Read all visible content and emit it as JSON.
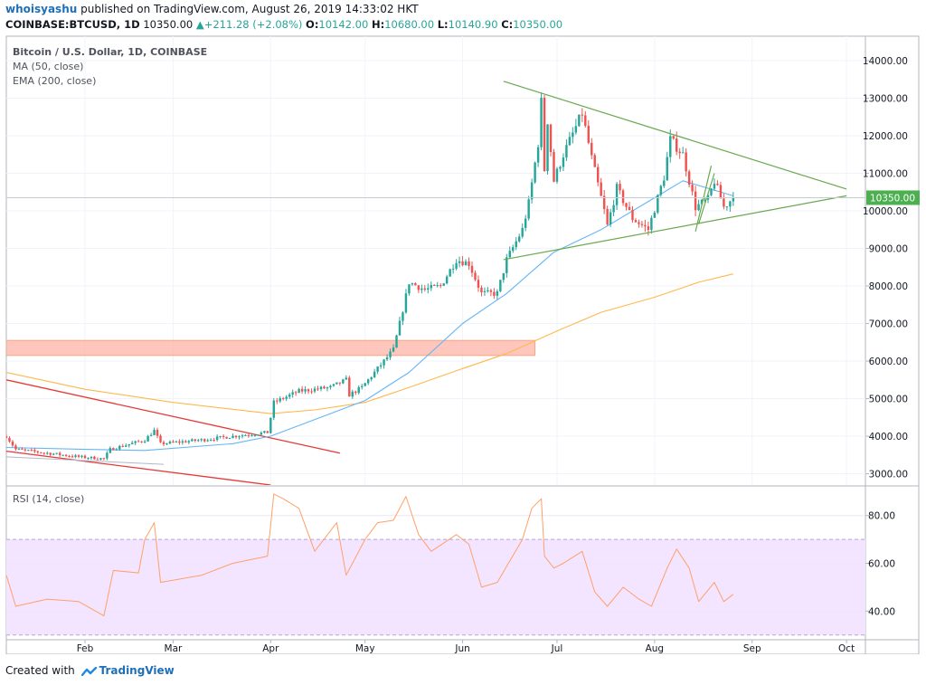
{
  "header": {
    "user": "whoisyashu",
    "published": "published on TradingView.com, August 26, 2019 14:33:02 HKT",
    "symbol": "COINBASE:BTCUSD, 1D",
    "price": "10350.00",
    "change": "+211.28 (+2.08%)",
    "o_label": "O:",
    "o_value": "10142.00",
    "h_label": "H:",
    "h_value": "10680.00",
    "l_label": "L:",
    "l_value": "10140.90",
    "c_label": "C:",
    "c_value": "10350.00"
  },
  "footer": {
    "created_with": "Created with",
    "brand": "TradingView"
  },
  "colors": {
    "up": "#26a69a",
    "down": "#ef5350",
    "ma50": "#64b5f6",
    "ema200": "#ffb74d",
    "triangle": "#6aa84f",
    "channel": "#e53935",
    "zone_fill": "#ffb3a7",
    "rsi": "#ffa069",
    "rsi_band": "#f3e5ff",
    "price_tag": "#4caf50"
  },
  "chart_data": [
    {
      "type": "candlestick",
      "legend": [
        "Bitcoin / U.S. Dollar, 1D, COINBASE",
        "MA (50, close)",
        "EMA (200, close)"
      ],
      "x_tick_labels": [
        "Feb",
        "Mar",
        "Apr",
        "May",
        "Jun",
        "Jul",
        "Aug",
        "Sep",
        "Oct"
      ],
      "y_ticks": [
        3000,
        4000,
        5000,
        6000,
        7000,
        8000,
        9000,
        10000,
        11000,
        12000,
        13000,
        14000
      ],
      "y_tick_labels": [
        "3000.00",
        "4000.00",
        "5000.00",
        "6000.00",
        "7000.00",
        "8000.00",
        "9000.00",
        "10000.00",
        "11000.00",
        "12000.00",
        "13000.00",
        "14000.00"
      ],
      "ylim": [
        2700,
        14650
      ],
      "last_price_label": "10350.00",
      "last_price": 10350,
      "x_date_range": [
        "2019-01-07",
        "2019-10-07"
      ],
      "close_waypoints": [
        [
          "2019-01-07",
          4000
        ],
        [
          "2019-01-10",
          3650
        ],
        [
          "2019-01-20",
          3550
        ],
        [
          "2019-01-30",
          3450
        ],
        [
          "2019-02-07",
          3400
        ],
        [
          "2019-02-09",
          3650
        ],
        [
          "2019-02-20",
          3900
        ],
        [
          "2019-02-23",
          4150
        ],
        [
          "2019-02-25",
          3800
        ],
        [
          "2019-03-10",
          3900
        ],
        [
          "2019-03-20",
          4000
        ],
        [
          "2019-03-31",
          4100
        ],
        [
          "2019-04-02",
          4900
        ],
        [
          "2019-04-10",
          5200
        ],
        [
          "2019-04-20",
          5300
        ],
        [
          "2019-04-25",
          5500
        ],
        [
          "2019-04-26",
          5100
        ],
        [
          "2019-04-30",
          5300
        ],
        [
          "2019-05-05",
          5800
        ],
        [
          "2019-05-10",
          6300
        ],
        [
          "2019-05-12",
          7000
        ],
        [
          "2019-05-15",
          8100
        ],
        [
          "2019-05-20",
          7900
        ],
        [
          "2019-05-25",
          8000
        ],
        [
          "2019-05-30",
          8700
        ],
        [
          "2019-06-03",
          8600
        ],
        [
          "2019-06-07",
          7800
        ],
        [
          "2019-06-12",
          7800
        ],
        [
          "2019-06-15",
          8700
        ],
        [
          "2019-06-20",
          9500
        ],
        [
          "2019-06-22",
          10200
        ],
        [
          "2019-06-25",
          11800
        ],
        [
          "2019-06-26",
          12900
        ],
        [
          "2019-06-27",
          11100
        ],
        [
          "2019-06-28",
          12400
        ],
        [
          "2019-06-30",
          10800
        ],
        [
          "2019-07-03",
          11500
        ],
        [
          "2019-07-09",
          12600
        ],
        [
          "2019-07-12",
          11400
        ],
        [
          "2019-07-16",
          10000
        ],
        [
          "2019-07-17",
          9600
        ],
        [
          "2019-07-20",
          10600
        ],
        [
          "2019-07-25",
          9800
        ],
        [
          "2019-07-30",
          9500
        ],
        [
          "2019-08-04",
          10900
        ],
        [
          "2019-08-06",
          11900
        ],
        [
          "2019-08-10",
          11500
        ],
        [
          "2019-08-14",
          10100
        ],
        [
          "2019-08-18",
          10300
        ],
        [
          "2019-08-20",
          10800
        ],
        [
          "2019-08-23",
          10100
        ],
        [
          "2019-08-26",
          10350
        ]
      ],
      "series": [
        {
          "name": "MA (50, close)",
          "points": [
            [
              "2019-01-07",
              3700
            ],
            [
              "2019-02-01",
              3650
            ],
            [
              "2019-02-20",
              3620
            ],
            [
              "2019-03-20",
              3800
            ],
            [
              "2019-04-01",
              4000
            ],
            [
              "2019-04-20",
              4600
            ],
            [
              "2019-05-01",
              4950
            ],
            [
              "2019-05-15",
              5700
            ],
            [
              "2019-06-01",
              7000
            ],
            [
              "2019-06-15",
              7800
            ],
            [
              "2019-06-30",
              8900
            ],
            [
              "2019-07-15",
              9500
            ],
            [
              "2019-07-31",
              10300
            ],
            [
              "2019-08-10",
              10800
            ],
            [
              "2019-08-26",
              10400
            ]
          ]
        },
        {
          "name": "EMA (200, close)",
          "points": [
            [
              "2019-01-07",
              5700
            ],
            [
              "2019-02-01",
              5250
            ],
            [
              "2019-03-01",
              4900
            ],
            [
              "2019-04-01",
              4600
            ],
            [
              "2019-04-15",
              4700
            ],
            [
              "2019-05-01",
              4900
            ],
            [
              "2019-05-15",
              5300
            ],
            [
              "2019-06-01",
              5800
            ],
            [
              "2019-06-15",
              6200
            ],
            [
              "2019-07-01",
              6800
            ],
            [
              "2019-07-15",
              7300
            ],
            [
              "2019-08-01",
              7700
            ],
            [
              "2019-08-15",
              8100
            ],
            [
              "2019-08-26",
              8320
            ]
          ]
        }
      ],
      "drawings": {
        "triangle_upper": [
          [
            "2019-06-14",
            13450
          ],
          [
            "2019-10-01",
            10580
          ]
        ],
        "triangle_lower": [
          [
            "2019-06-14",
            8700
          ],
          [
            "2019-10-01",
            10400
          ]
        ],
        "flag_lines": [
          [
            [
              "2019-08-14",
              9450
            ],
            [
              "2019-08-19",
              11200
            ]
          ],
          [
            [
              "2019-08-15",
              9650
            ],
            [
              "2019-08-20",
              11000
            ]
          ]
        ],
        "channel_upper": [
          [
            "2019-01-07",
            5500
          ],
          [
            "2019-04-23",
            3550
          ]
        ],
        "channel_lower": [
          [
            "2019-01-07",
            3600
          ],
          [
            "2019-04-01",
            2700
          ]
        ],
        "zone": {
          "x": [
            "2019-01-07",
            "2019-06-24"
          ],
          "y": [
            6150,
            6550
          ]
        },
        "pointer": [
          [
            "2019-01-07",
            3450
          ],
          [
            "2019-02-26",
            3250
          ]
        ]
      }
    },
    {
      "type": "line",
      "legend": [
        "RSI (14, close)"
      ],
      "y_ticks": [
        40,
        60,
        80
      ],
      "y_tick_labels": [
        "40.00",
        "60.00",
        "80.00"
      ],
      "ylim": [
        28,
        92
      ],
      "band": [
        30,
        70
      ],
      "x_date_range": [
        "2019-01-07",
        "2019-10-07"
      ],
      "points": [
        [
          "2019-01-07",
          55
        ],
        [
          "2019-01-10",
          42
        ],
        [
          "2019-01-20",
          45
        ],
        [
          "2019-01-30",
          44
        ],
        [
          "2019-02-07",
          38
        ],
        [
          "2019-02-10",
          57
        ],
        [
          "2019-02-18",
          56
        ],
        [
          "2019-02-20",
          70
        ],
        [
          "2019-02-23",
          77
        ],
        [
          "2019-02-25",
          52
        ],
        [
          "2019-03-10",
          55
        ],
        [
          "2019-03-20",
          60
        ],
        [
          "2019-03-31",
          63
        ],
        [
          "2019-04-02",
          89
        ],
        [
          "2019-04-05",
          87
        ],
        [
          "2019-04-10",
          83
        ],
        [
          "2019-04-15",
          65
        ],
        [
          "2019-04-22",
          77
        ],
        [
          "2019-04-25",
          55
        ],
        [
          "2019-05-01",
          70
        ],
        [
          "2019-05-05",
          77
        ],
        [
          "2019-05-10",
          78
        ],
        [
          "2019-05-14",
          88
        ],
        [
          "2019-05-18",
          72
        ],
        [
          "2019-05-22",
          65
        ],
        [
          "2019-05-30",
          72
        ],
        [
          "2019-06-03",
          68
        ],
        [
          "2019-06-07",
          50
        ],
        [
          "2019-06-12",
          52
        ],
        [
          "2019-06-20",
          70
        ],
        [
          "2019-06-23",
          83
        ],
        [
          "2019-06-26",
          87
        ],
        [
          "2019-06-27",
          63
        ],
        [
          "2019-06-30",
          58
        ],
        [
          "2019-07-03",
          60
        ],
        [
          "2019-07-09",
          65
        ],
        [
          "2019-07-13",
          48
        ],
        [
          "2019-07-17",
          42
        ],
        [
          "2019-07-22",
          50
        ],
        [
          "2019-07-27",
          45
        ],
        [
          "2019-07-31",
          42
        ],
        [
          "2019-08-05",
          58
        ],
        [
          "2019-08-08",
          66
        ],
        [
          "2019-08-12",
          58
        ],
        [
          "2019-08-15",
          44
        ],
        [
          "2019-08-20",
          52
        ],
        [
          "2019-08-23",
          44
        ],
        [
          "2019-08-26",
          47
        ]
      ]
    }
  ]
}
